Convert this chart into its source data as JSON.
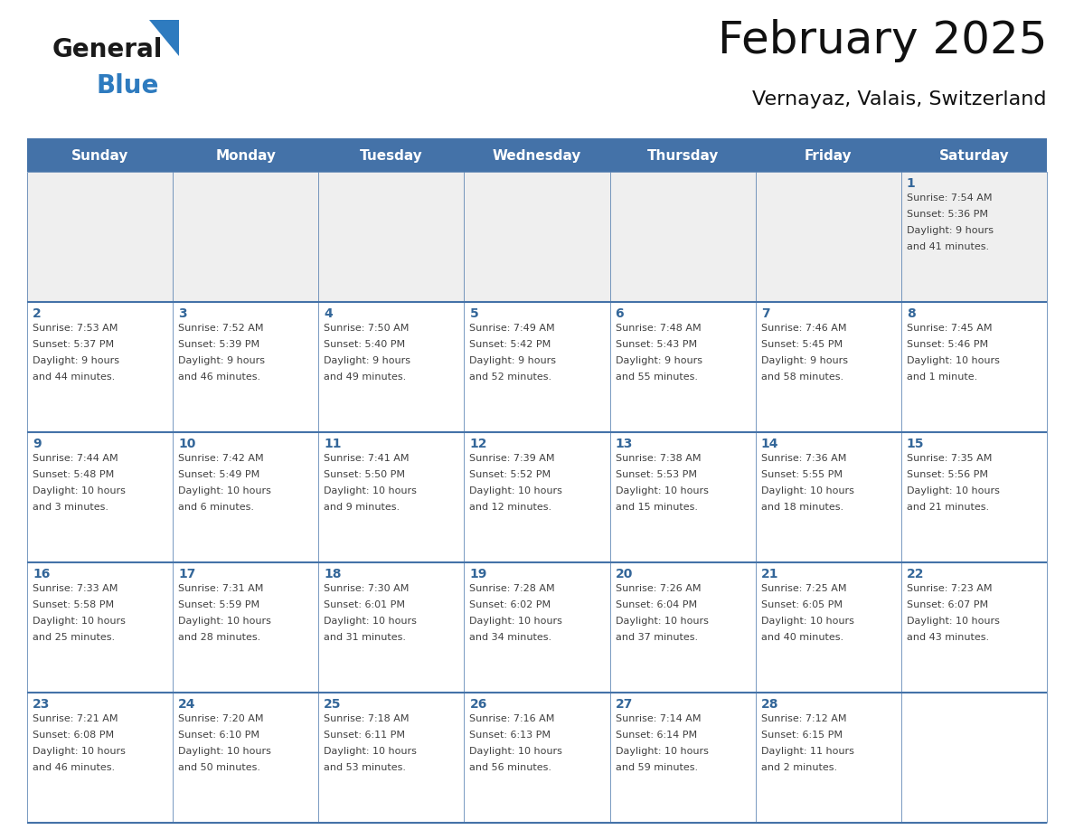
{
  "title": "February 2025",
  "subtitle": "Vernayaz, Valais, Switzerland",
  "days_of_week": [
    "Sunday",
    "Monday",
    "Tuesday",
    "Wednesday",
    "Thursday",
    "Friday",
    "Saturday"
  ],
  "header_bg": "#4472a8",
  "header_text": "#ffffff",
  "cell_bg_week1": "#efefef",
  "cell_bg_normal": "#ffffff",
  "day_number_color": "#336699",
  "info_text_color": "#404040",
  "divider_color": "#4472a8",
  "logo_general_color": "#1a1a1a",
  "logo_blue_color": "#2e7bbf",
  "calendar_data": [
    [
      null,
      null,
      null,
      null,
      null,
      null,
      {
        "day": 1,
        "sunrise": "7:54 AM",
        "sunset": "5:36 PM",
        "daylight": "9 hours and 41 minutes."
      }
    ],
    [
      {
        "day": 2,
        "sunrise": "7:53 AM",
        "sunset": "5:37 PM",
        "daylight": "9 hours and 44 minutes."
      },
      {
        "day": 3,
        "sunrise": "7:52 AM",
        "sunset": "5:39 PM",
        "daylight": "9 hours and 46 minutes."
      },
      {
        "day": 4,
        "sunrise": "7:50 AM",
        "sunset": "5:40 PM",
        "daylight": "9 hours and 49 minutes."
      },
      {
        "day": 5,
        "sunrise": "7:49 AM",
        "sunset": "5:42 PM",
        "daylight": "9 hours and 52 minutes."
      },
      {
        "day": 6,
        "sunrise": "7:48 AM",
        "sunset": "5:43 PM",
        "daylight": "9 hours and 55 minutes."
      },
      {
        "day": 7,
        "sunrise": "7:46 AM",
        "sunset": "5:45 PM",
        "daylight": "9 hours and 58 minutes."
      },
      {
        "day": 8,
        "sunrise": "7:45 AM",
        "sunset": "5:46 PM",
        "daylight": "10 hours and 1 minute."
      }
    ],
    [
      {
        "day": 9,
        "sunrise": "7:44 AM",
        "sunset": "5:48 PM",
        "daylight": "10 hours and 3 minutes."
      },
      {
        "day": 10,
        "sunrise": "7:42 AM",
        "sunset": "5:49 PM",
        "daylight": "10 hours and 6 minutes."
      },
      {
        "day": 11,
        "sunrise": "7:41 AM",
        "sunset": "5:50 PM",
        "daylight": "10 hours and 9 minutes."
      },
      {
        "day": 12,
        "sunrise": "7:39 AM",
        "sunset": "5:52 PM",
        "daylight": "10 hours and 12 minutes."
      },
      {
        "day": 13,
        "sunrise": "7:38 AM",
        "sunset": "5:53 PM",
        "daylight": "10 hours and 15 minutes."
      },
      {
        "day": 14,
        "sunrise": "7:36 AM",
        "sunset": "5:55 PM",
        "daylight": "10 hours and 18 minutes."
      },
      {
        "day": 15,
        "sunrise": "7:35 AM",
        "sunset": "5:56 PM",
        "daylight": "10 hours and 21 minutes."
      }
    ],
    [
      {
        "day": 16,
        "sunrise": "7:33 AM",
        "sunset": "5:58 PM",
        "daylight": "10 hours and 25 minutes."
      },
      {
        "day": 17,
        "sunrise": "7:31 AM",
        "sunset": "5:59 PM",
        "daylight": "10 hours and 28 minutes."
      },
      {
        "day": 18,
        "sunrise": "7:30 AM",
        "sunset": "6:01 PM",
        "daylight": "10 hours and 31 minutes."
      },
      {
        "day": 19,
        "sunrise": "7:28 AM",
        "sunset": "6:02 PM",
        "daylight": "10 hours and 34 minutes."
      },
      {
        "day": 20,
        "sunrise": "7:26 AM",
        "sunset": "6:04 PM",
        "daylight": "10 hours and 37 minutes."
      },
      {
        "day": 21,
        "sunrise": "7:25 AM",
        "sunset": "6:05 PM",
        "daylight": "10 hours and 40 minutes."
      },
      {
        "day": 22,
        "sunrise": "7:23 AM",
        "sunset": "6:07 PM",
        "daylight": "10 hours and 43 minutes."
      }
    ],
    [
      {
        "day": 23,
        "sunrise": "7:21 AM",
        "sunset": "6:08 PM",
        "daylight": "10 hours and 46 minutes."
      },
      {
        "day": 24,
        "sunrise": "7:20 AM",
        "sunset": "6:10 PM",
        "daylight": "10 hours and 50 minutes."
      },
      {
        "day": 25,
        "sunrise": "7:18 AM",
        "sunset": "6:11 PM",
        "daylight": "10 hours and 53 minutes."
      },
      {
        "day": 26,
        "sunrise": "7:16 AM",
        "sunset": "6:13 PM",
        "daylight": "10 hours and 56 minutes."
      },
      {
        "day": 27,
        "sunrise": "7:14 AM",
        "sunset": "6:14 PM",
        "daylight": "10 hours and 59 minutes."
      },
      {
        "day": 28,
        "sunrise": "7:12 AM",
        "sunset": "6:15 PM",
        "daylight": "11 hours and 2 minutes."
      },
      null
    ]
  ]
}
